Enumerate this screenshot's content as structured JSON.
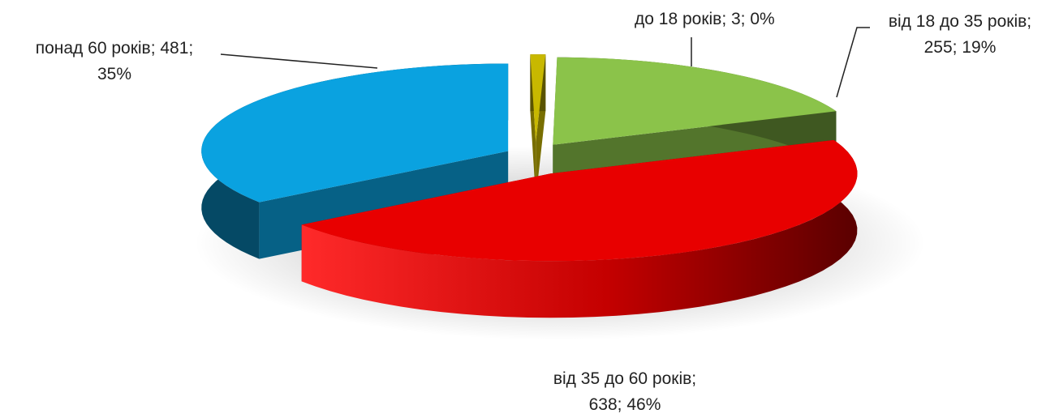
{
  "chart_data": {
    "type": "pie",
    "style": "3d-exploded",
    "slices": [
      {
        "category": "до 18 років",
        "value": 3,
        "percent": "0%",
        "color": "#c8b800",
        "label_lines": [
          "до 18 років; 3; 0%"
        ]
      },
      {
        "category": "від 18 до 35 років",
        "value": 255,
        "percent": "19%",
        "color": "#8bc34a",
        "label_lines": [
          "від 18 до 35 років;",
          "255; 19%"
        ]
      },
      {
        "category": "від 35 до 60 років",
        "value": 638,
        "percent": "46%",
        "color": "#e80000",
        "label_lines": [
          "від 35 до 60 років;",
          "638; 46%"
        ]
      },
      {
        "category": "понад 60 років",
        "value": 481,
        "percent": "35%",
        "color": "#0aa2e0",
        "label_lines": [
          "понад 60 років; 481;",
          "35%"
        ]
      }
    ]
  }
}
